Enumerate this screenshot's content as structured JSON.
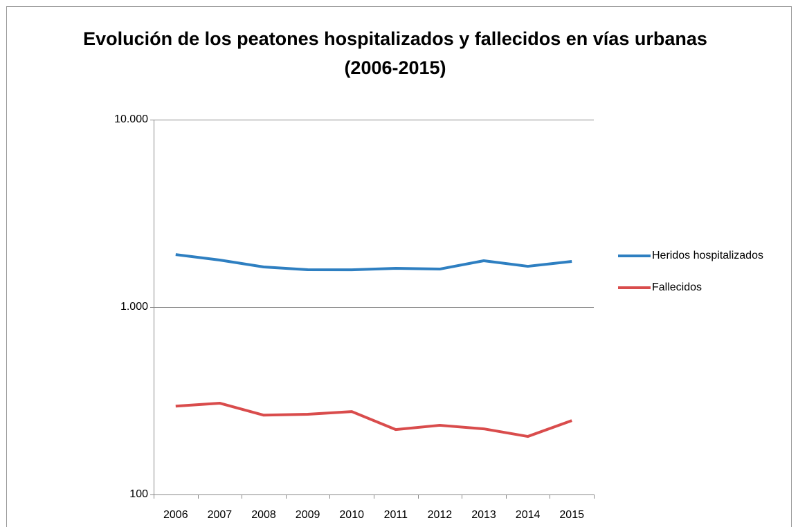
{
  "chart_data": {
    "type": "line",
    "title": [
      "Evolución de los peatones hospitalizados y fallecidos en vías urbanas",
      "(2006-2015)"
    ],
    "categories": [
      "2006",
      "2007",
      "2008",
      "2009",
      "2010",
      "2011",
      "2012",
      "2013",
      "2014",
      "2015"
    ],
    "series": [
      {
        "name": "Heridos hospitalizados",
        "color": "#2e7fc1",
        "values": [
          1906,
          1782,
          1637,
          1582,
          1580,
          1610,
          1595,
          1767,
          1650,
          1752
        ]
      },
      {
        "name": "Fallecidos",
        "color": "#d94c4c",
        "values": [
          296,
          307,
          265,
          268,
          277,
          222,
          234,
          224,
          204,
          248
        ]
      }
    ],
    "log_scale": true,
    "ylim": [
      100,
      10000
    ],
    "yticks": [
      100,
      {
        "value": 1000,
        "label": "1.000"
      },
      {
        "value": 10000,
        "label": "10.000"
      }
    ],
    "grid": true,
    "legend": "right"
  }
}
